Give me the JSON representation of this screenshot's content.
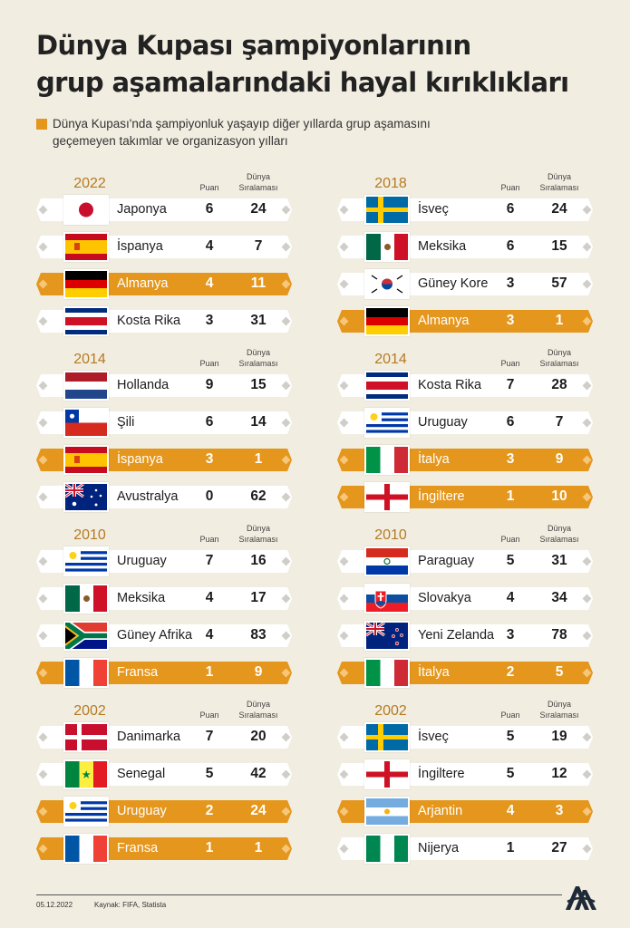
{
  "title_line1": "Dünya Kupası şampiyonlarının",
  "title_line2": "grup aşamalarındaki hayal kırıklıkları",
  "subtitle_line1": "Dünya Kupası'nda şampiyonluk yaşayıp diğer yıllarda grup aşamasını",
  "subtitle_line2": "geçemeyen takımlar ve organizasyon yılları",
  "header_points": "Puan",
  "header_ranking": "Dünya Sıralaması",
  "highlight_color": "#e5961c",
  "groups": [
    {
      "year": "2022",
      "rows": [
        {
          "flag": "japan-flag-icon",
          "name": "Japonya",
          "points": "6",
          "rank": "24",
          "highlight": false
        },
        {
          "flag": "spain-flag-icon",
          "name": "İspanya",
          "points": "4",
          "rank": "7",
          "highlight": false
        },
        {
          "flag": "germany-flag-icon",
          "name": "Almanya",
          "points": "4",
          "rank": "11",
          "highlight": true
        },
        {
          "flag": "costa-rica-flag-icon",
          "name": "Kosta Rika",
          "points": "3",
          "rank": "31",
          "highlight": false
        }
      ]
    },
    {
      "year": "2018",
      "rows": [
        {
          "flag": "sweden-flag-icon",
          "name": "İsveç",
          "points": "6",
          "rank": "24",
          "highlight": false
        },
        {
          "flag": "mexico-flag-icon",
          "name": "Meksika",
          "points": "6",
          "rank": "15",
          "highlight": false
        },
        {
          "flag": "south-korea-flag-icon",
          "name": "Güney Kore",
          "points": "3",
          "rank": "57",
          "highlight": false
        },
        {
          "flag": "germany-flag-icon",
          "name": "Almanya",
          "points": "3",
          "rank": "1",
          "highlight": true
        }
      ]
    },
    {
      "year": "2014",
      "rows": [
        {
          "flag": "netherlands-flag-icon",
          "name": "Hollanda",
          "points": "9",
          "rank": "15",
          "highlight": false
        },
        {
          "flag": "chile-flag-icon",
          "name": "Şili",
          "points": "6",
          "rank": "14",
          "highlight": false
        },
        {
          "flag": "spain-flag-icon",
          "name": "İspanya",
          "points": "3",
          "rank": "1",
          "highlight": true
        },
        {
          "flag": "australia-flag-icon",
          "name": "Avustralya",
          "points": "0",
          "rank": "62",
          "highlight": false
        }
      ]
    },
    {
      "year": "2014",
      "rows": [
        {
          "flag": "costa-rica-flag-icon",
          "name": "Kosta Rika",
          "points": "7",
          "rank": "28",
          "highlight": false
        },
        {
          "flag": "uruguay-flag-icon",
          "name": "Uruguay",
          "points": "6",
          "rank": "7",
          "highlight": false
        },
        {
          "flag": "italy-flag-icon",
          "name": "İtalya",
          "points": "3",
          "rank": "9",
          "highlight": true
        },
        {
          "flag": "england-flag-icon",
          "name": "İngiltere",
          "points": "1",
          "rank": "10",
          "highlight": true
        }
      ]
    },
    {
      "year": "2010",
      "rows": [
        {
          "flag": "uruguay-flag-icon",
          "name": "Uruguay",
          "points": "7",
          "rank": "16",
          "highlight": false
        },
        {
          "flag": "mexico-flag-icon",
          "name": "Meksika",
          "points": "4",
          "rank": "17",
          "highlight": false
        },
        {
          "flag": "south-africa-flag-icon",
          "name": "Güney Afrika",
          "points": "4",
          "rank": "83",
          "highlight": false
        },
        {
          "flag": "france-flag-icon",
          "name": "Fransa",
          "points": "1",
          "rank": "9",
          "highlight": true
        }
      ]
    },
    {
      "year": "2010",
      "rows": [
        {
          "flag": "paraguay-flag-icon",
          "name": "Paraguay",
          "points": "5",
          "rank": "31",
          "highlight": false
        },
        {
          "flag": "slovakia-flag-icon",
          "name": "Slovakya",
          "points": "4",
          "rank": "34",
          "highlight": false
        },
        {
          "flag": "new-zealand-flag-icon",
          "name": "Yeni Zelanda",
          "points": "3",
          "rank": "78",
          "highlight": false
        },
        {
          "flag": "italy-flag-icon",
          "name": "İtalya",
          "points": "2",
          "rank": "5",
          "highlight": true
        }
      ]
    },
    {
      "year": "2002",
      "rows": [
        {
          "flag": "denmark-flag-icon",
          "name": "Danimarka",
          "points": "7",
          "rank": "20",
          "highlight": false
        },
        {
          "flag": "senegal-flag-icon",
          "name": "Senegal",
          "points": "5",
          "rank": "42",
          "highlight": false
        },
        {
          "flag": "uruguay-flag-icon",
          "name": "Uruguay",
          "points": "2",
          "rank": "24",
          "highlight": true
        },
        {
          "flag": "france-flag-icon",
          "name": "Fransa",
          "points": "1",
          "rank": "1",
          "highlight": true
        }
      ]
    },
    {
      "year": "2002",
      "rows": [
        {
          "flag": "sweden-flag-icon",
          "name": "İsveç",
          "points": "5",
          "rank": "19",
          "highlight": false
        },
        {
          "flag": "england-flag-icon",
          "name": "İngiltere",
          "points": "5",
          "rank": "12",
          "highlight": false
        },
        {
          "flag": "argentina-flag-icon",
          "name": "Arjantin",
          "points": "4",
          "rank": "3",
          "highlight": true
        },
        {
          "flag": "nigeria-flag-icon",
          "name": "Nijerya",
          "points": "1",
          "rank": "27",
          "highlight": false
        }
      ]
    }
  ],
  "footer": {
    "date": "05.12.2022",
    "source": "Kaynak: FIFA, Statista",
    "logo": "aa-logo-icon"
  }
}
